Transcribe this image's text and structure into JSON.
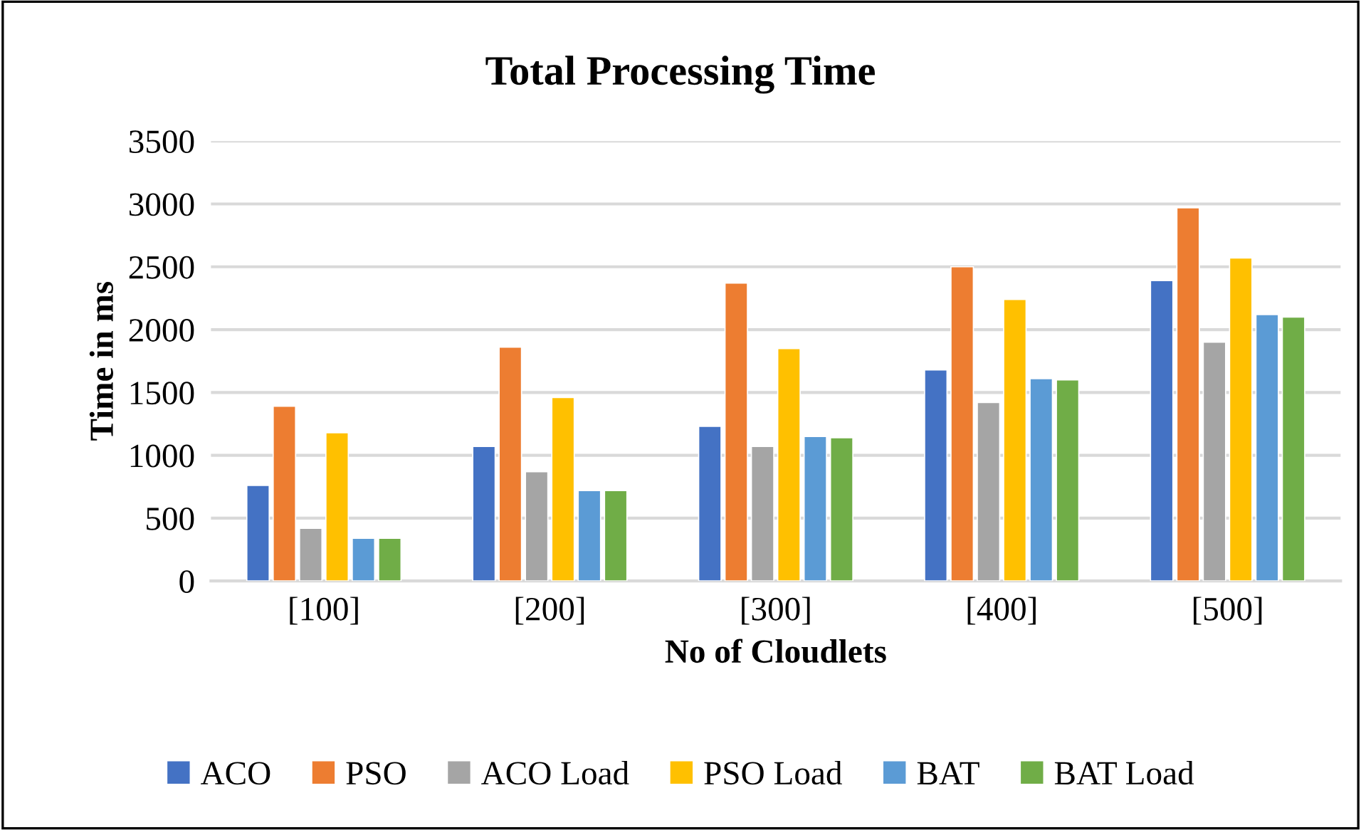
{
  "chart_data": {
    "type": "bar",
    "title": "Total Processing Time",
    "xlabel": "No of Cloudlets",
    "ylabel": "Time in ms",
    "categories": [
      "[100]",
      "[200]",
      "[300]",
      "[400]",
      "[500]"
    ],
    "series": [
      {
        "name": "ACO",
        "color": "#4472c4",
        "values": [
          760,
          1070,
          1230,
          1680,
          2390
        ]
      },
      {
        "name": "PSO",
        "color": "#ed7d31",
        "values": [
          1390,
          1860,
          2370,
          2500,
          2970
        ]
      },
      {
        "name": "ACO Load",
        "color": "#a5a5a5",
        "values": [
          420,
          870,
          1070,
          1420,
          1900
        ]
      },
      {
        "name": "PSO Load",
        "color": "#ffc000",
        "values": [
          1180,
          1460,
          1850,
          2240,
          2570
        ]
      },
      {
        "name": "BAT",
        "color": "#5b9bd5",
        "values": [
          340,
          720,
          1150,
          1610,
          2120
        ]
      },
      {
        "name": "BAT Load",
        "color": "#70ad47",
        "values": [
          340,
          720,
          1140,
          1600,
          2100
        ]
      }
    ],
    "ylim": [
      0,
      3500
    ],
    "yticks": [
      0,
      500,
      1000,
      1500,
      2000,
      2500,
      3000,
      3500
    ],
    "grid": "y",
    "legend": "bottom"
  }
}
